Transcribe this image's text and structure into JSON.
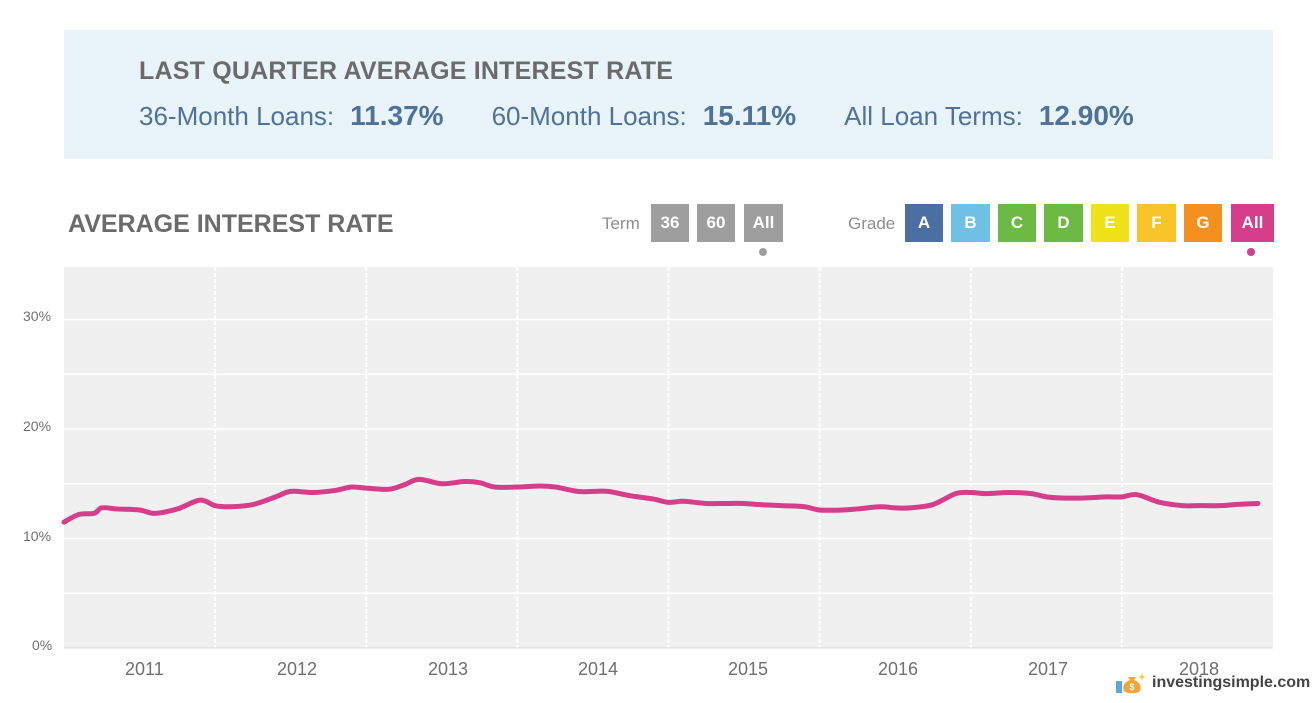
{
  "summary": {
    "title": "LAST QUARTER AVERAGE INTEREST RATE",
    "stats": [
      {
        "label": "36-Month Loans:",
        "value": "11.37%"
      },
      {
        "label": "60-Month Loans:",
        "value": "15.11%"
      },
      {
        "label": "All Loan Terms:",
        "value": "12.90%"
      }
    ]
  },
  "filters": {
    "term_label": "Term",
    "term_options": [
      "36",
      "60",
      "All"
    ],
    "term_selected": "All",
    "grade_label": "Grade",
    "grade_options": [
      {
        "label": "A",
        "color": "#4a6fa0"
      },
      {
        "label": "B",
        "color": "#6ec1e4"
      },
      {
        "label": "C",
        "color": "#6cba44"
      },
      {
        "label": "D",
        "color": "#6cba44"
      },
      {
        "label": "E",
        "color": "#f0e21a"
      },
      {
        "label": "F",
        "color": "#f9c42a"
      },
      {
        "label": "G",
        "color": "#f5901e"
      },
      {
        "label": "All",
        "color": "#d63d8a"
      }
    ],
    "grade_selected": "All",
    "term_button_color": "#9e9e9e"
  },
  "chart_data": {
    "type": "line",
    "title": "AVERAGE INTEREST RATE",
    "xlabel": "",
    "ylabel": "",
    "ylim": [
      0,
      35
    ],
    "yticks": [
      "0%",
      "10%",
      "20%",
      "30%"
    ],
    "ytick_values": [
      0,
      10,
      20,
      30
    ],
    "xticks": [
      "2011",
      "2012",
      "2013",
      "2014",
      "2015",
      "2016",
      "2017",
      "2018"
    ],
    "xlim": [
      2010.5,
      2018.5
    ],
    "grid": true,
    "line_color": "#d63d8a",
    "series": [
      {
        "x": [
          2010.5,
          2010.6,
          2010.7,
          2010.75,
          2010.85,
          2011.0,
          2011.1,
          2011.25,
          2011.4,
          2011.5,
          2011.6,
          2011.75,
          2011.9,
          2012.0,
          2012.15,
          2012.3,
          2012.4,
          2012.5,
          2012.65,
          2012.75,
          2012.85,
          2013.0,
          2013.15,
          2013.25,
          2013.35,
          2013.5,
          2013.65,
          2013.75,
          2013.9,
          2014.0,
          2014.1,
          2014.25,
          2014.4,
          2014.5,
          2014.6,
          2014.75,
          2014.9,
          2015.0,
          2015.1,
          2015.25,
          2015.4,
          2015.5,
          2015.65,
          2015.75,
          2015.9,
          2016.0,
          2016.1,
          2016.25,
          2016.4,
          2016.5,
          2016.6,
          2016.75,
          2016.9,
          2017.0,
          2017.1,
          2017.25,
          2017.4,
          2017.5,
          2017.6,
          2017.75,
          2017.9,
          2018.0,
          2018.15,
          2018.25,
          2018.4
        ],
        "y": [
          11.5,
          12.2,
          12.3,
          12.8,
          12.7,
          12.6,
          12.3,
          12.7,
          13.5,
          13.0,
          12.9,
          13.1,
          13.8,
          14.3,
          14.2,
          14.4,
          14.7,
          14.6,
          14.5,
          14.9,
          15.4,
          15.0,
          15.2,
          15.1,
          14.7,
          14.7,
          14.8,
          14.7,
          14.3,
          14.3,
          14.3,
          13.9,
          13.6,
          13.3,
          13.4,
          13.2,
          13.2,
          13.2,
          13.1,
          13.0,
          12.9,
          12.6,
          12.6,
          12.7,
          12.9,
          12.8,
          12.8,
          13.1,
          14.1,
          14.2,
          14.1,
          14.2,
          14.1,
          13.8,
          13.7,
          13.7,
          13.8,
          13.8,
          14.0,
          13.3,
          13.0,
          13.0,
          13.0,
          13.1,
          13.2
        ]
      }
    ]
  },
  "brand": {
    "name": "investingsimple.com"
  }
}
